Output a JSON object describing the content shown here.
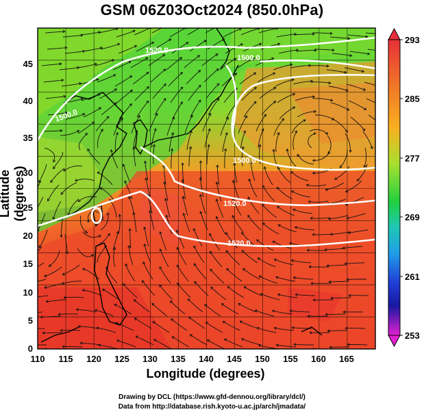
{
  "title": "GSM 06Z03Oct2024 (850.0hPa)",
  "x_label": "Longitude (degrees)",
  "y_label": "Latitude  (degrees)",
  "credits": [
    "Drawing by DCL (https://www.gfd-dennou.org/library/dcl/)",
    "Data from http://database.rish.kyoto-u.ac.jp/arch/jmadata/"
  ],
  "map": {
    "lon_range": [
      110,
      170
    ],
    "lat_range": [
      0,
      50
    ],
    "lon_ticks": [
      "110",
      "115",
      "120",
      "125",
      "130",
      "135",
      "140",
      "145",
      "150",
      "155",
      "160",
      "165"
    ],
    "lat_ticks": [
      "0",
      "5",
      "10",
      "15",
      "20",
      "25",
      "30",
      "35",
      "40",
      "45"
    ],
    "contour_labels": [
      "1520.0",
      "1500.0",
      "1500.0",
      "1520.0",
      "1500.0",
      "1520.0"
    ],
    "colorbar_labels": [
      "293",
      "285",
      "277",
      "269",
      "261",
      "253"
    ],
    "colorbar_colors": [
      "#e8303a",
      "#f07828",
      "#f8b020",
      "#a8e030",
      "#30d830",
      "#20c8a0",
      "#20a8e8",
      "#2048e0",
      "#1020a8",
      "#6020c8",
      "#e020d0"
    ]
  }
}
